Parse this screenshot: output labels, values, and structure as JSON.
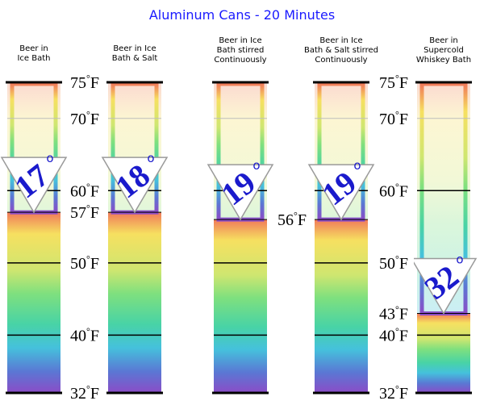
{
  "chart_data": {
    "type": "bar",
    "title": "Aluminum Cans - 20 Minutes",
    "unit": "°F",
    "ylim": [
      32,
      75
    ],
    "categories": [
      [
        "Beer in",
        "Ice Bath"
      ],
      [
        "Beer in Ice",
        "Bath & Salt"
      ],
      [
        "Beer in Ice",
        "Bath stirred",
        "Continuously"
      ],
      [
        "Beer in Ice",
        "Bath & Salt stirred",
        "Continuously"
      ],
      [
        "Beer in",
        "Supercold",
        "Whiskey Bath"
      ]
    ],
    "final_temperatures": [
      57,
      57,
      56,
      56,
      43
    ],
    "temperature_drops": [
      "17",
      "18",
      "19",
      "19",
      "32"
    ],
    "drop_marker": "o",
    "shared_axis_ticks": [
      32,
      40,
      50,
      60,
      70,
      75
    ],
    "left_axis_extra_ticks": [
      57
    ],
    "center_axis_extra_ticks": [
      56
    ],
    "right_axis_extra_ticks": [
      43
    ],
    "colors": {
      "title": "#1a1aff",
      "badge_number": "#1a1acc",
      "badge_fill": "#ffffff",
      "badge_stroke": "#aaaaaa",
      "axis_line": "#000000"
    }
  }
}
